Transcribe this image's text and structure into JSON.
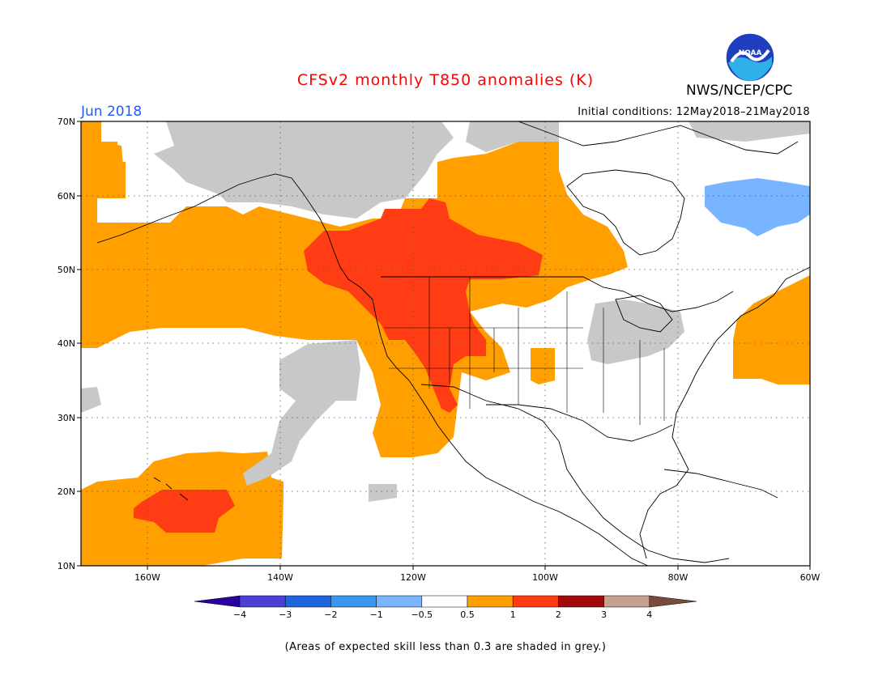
{
  "title": "CFSv2 monthly T850 anomalies (K)",
  "organization": "NWS/NCEP/CPC",
  "logo_text": "NOAA",
  "forecast_month": "Jun 2018",
  "initial_conditions": "Initial conditions: 12May2018–21May2018",
  "footnote": "(Areas of expected skill less than 0.3 are shaded in grey.)",
  "colors": {
    "title": "#ff0000",
    "month": "#1e5aff",
    "grey_low_skill": "#c8c8c8",
    "light_blue": "#78b4ff",
    "orange": "#ffa000",
    "red_orange": "#ff3c14",
    "coastline": "#000000"
  },
  "map": {
    "lon_range": [
      -170,
      -60
    ],
    "lat_range": [
      10,
      70
    ],
    "lat_ticks": [
      "10N",
      "20N",
      "30N",
      "40N",
      "50N",
      "60N",
      "70N"
    ],
    "lon_ticks": [
      "160W",
      "140W",
      "120W",
      "100W",
      "80W",
      "60W"
    ],
    "gridlines": "dotted"
  },
  "colorbar": {
    "labels": [
      "−4",
      "−3",
      "−2",
      "−1",
      "−0.5",
      "0.5",
      "1",
      "2",
      "3",
      "4"
    ],
    "colors": [
      "#2a00a0",
      "#4a40d8",
      "#1e64dc",
      "#3c96f0",
      "#78b4ff",
      "#ffffff",
      "#ffa000",
      "#ff3c14",
      "#a00a0a",
      "#c8a090",
      "#7a4a3a"
    ]
  }
}
